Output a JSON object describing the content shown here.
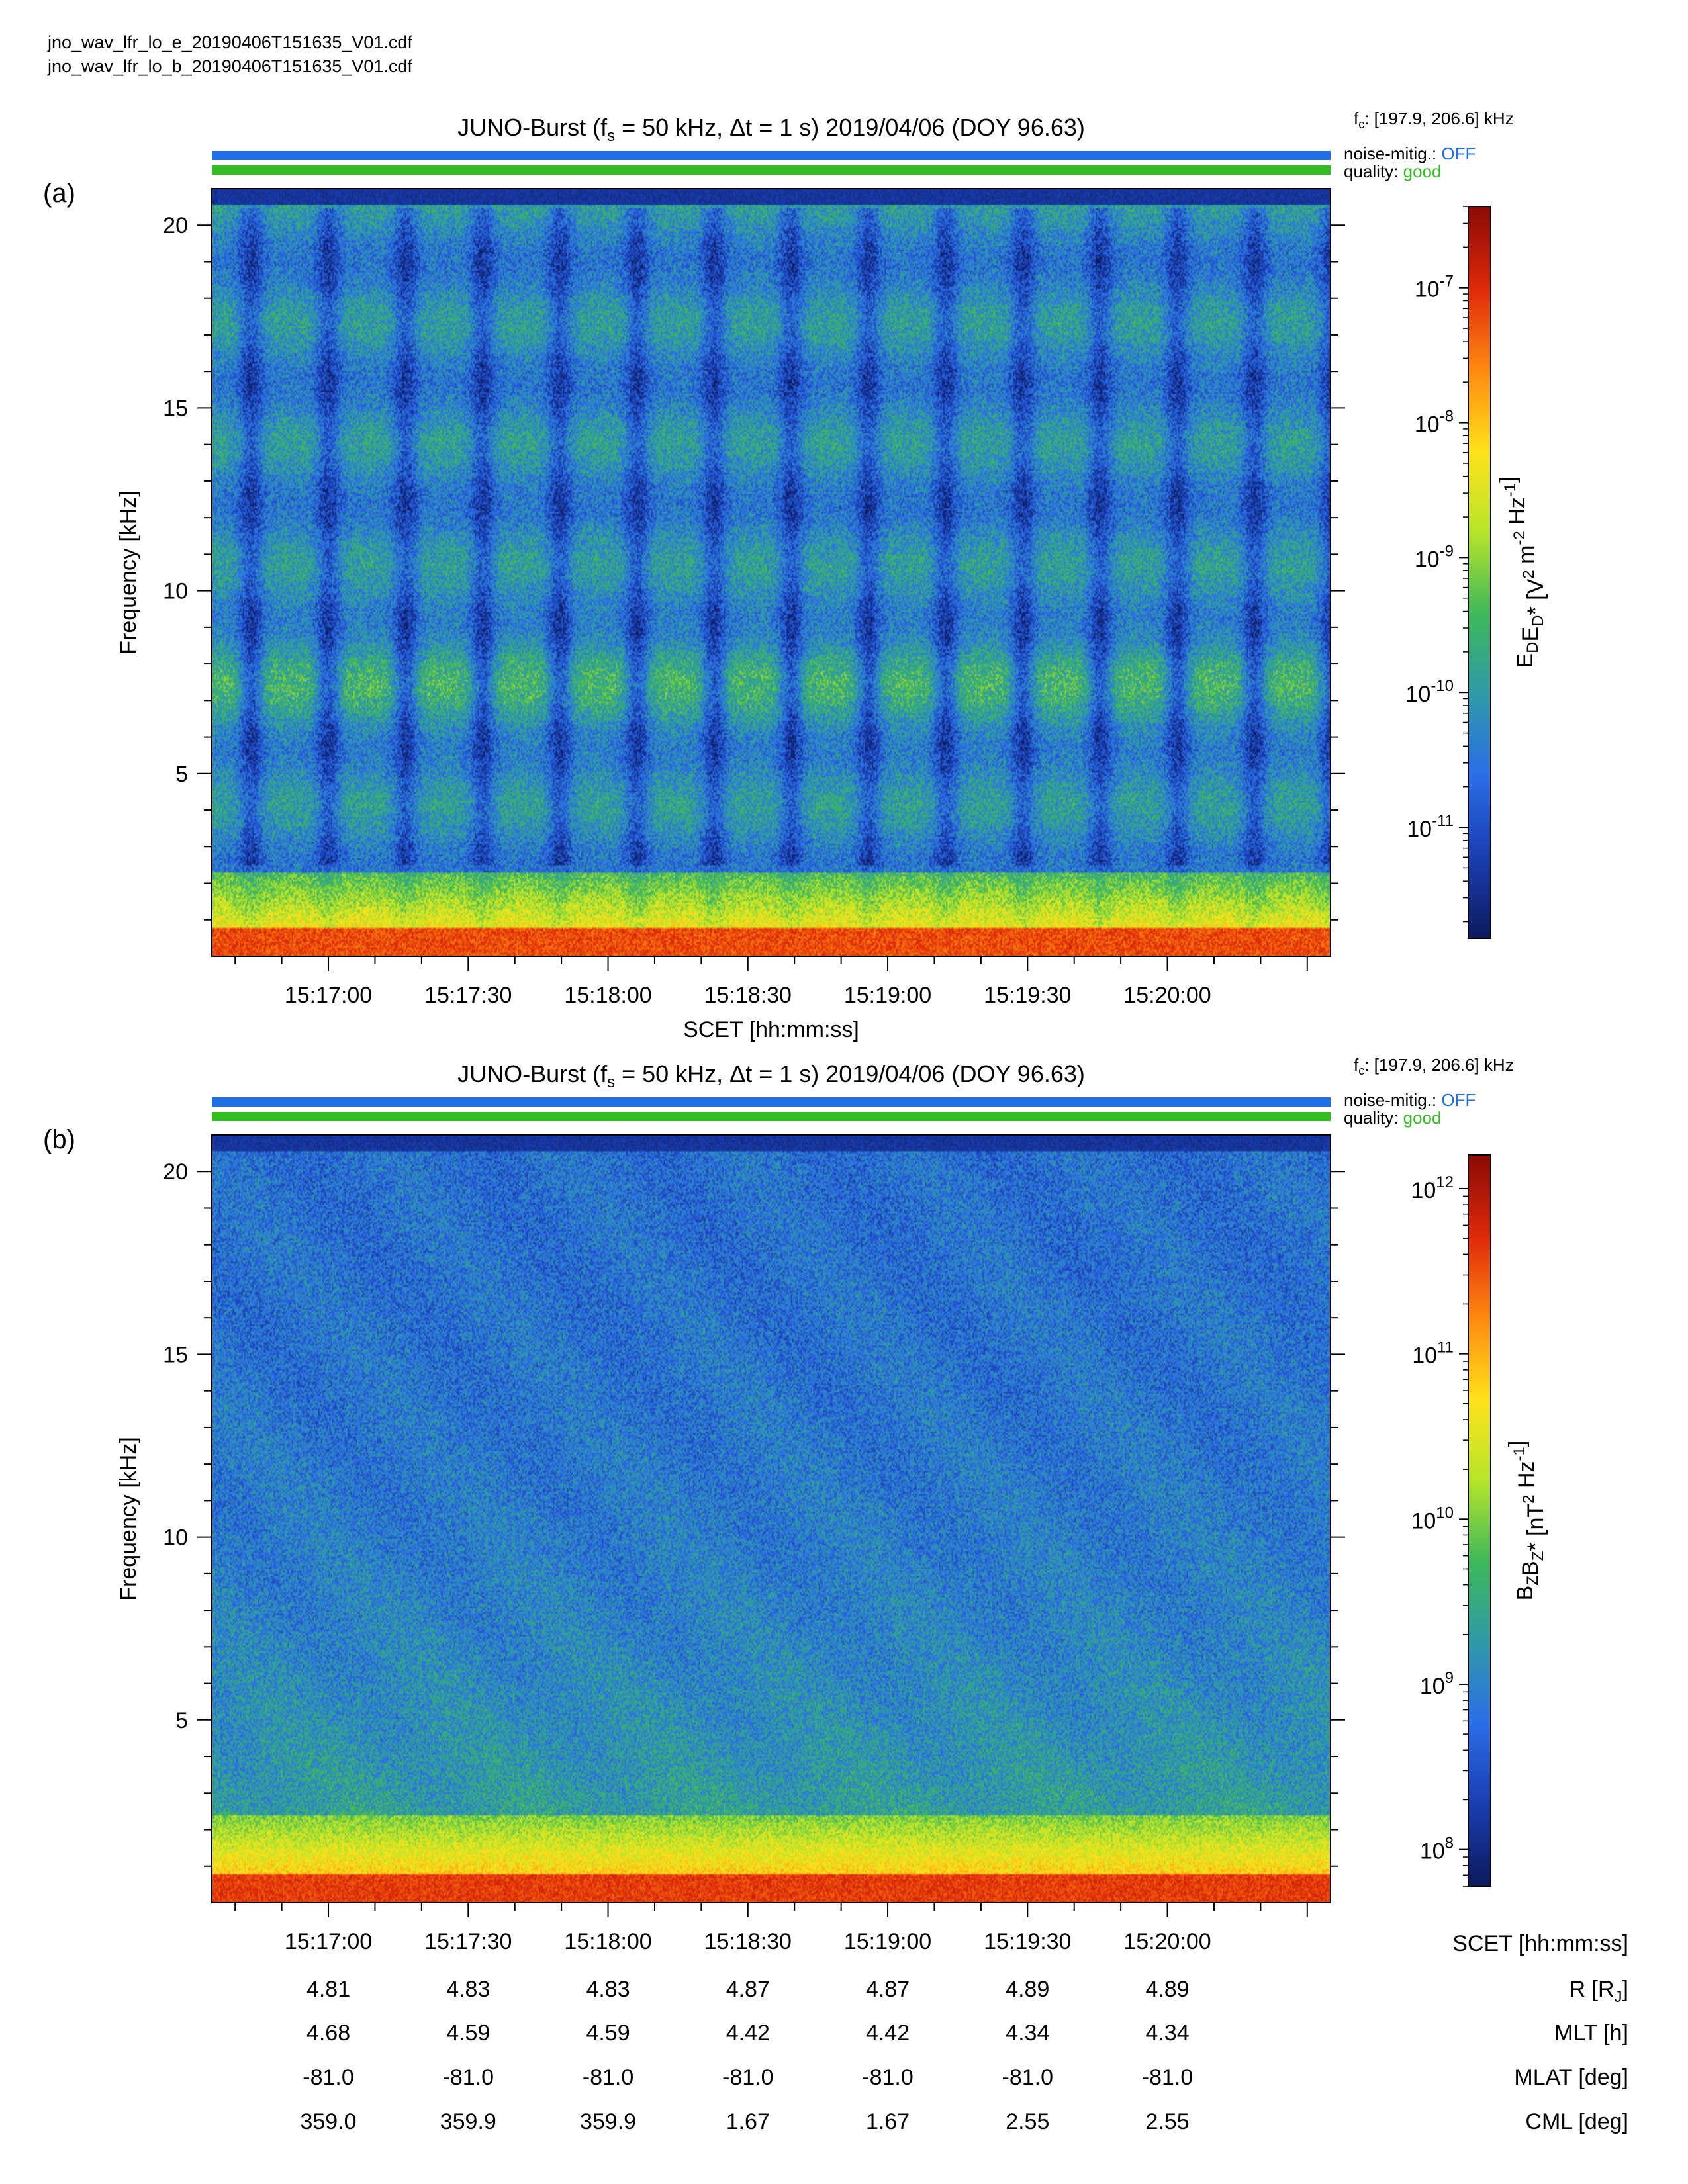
{
  "files": [
    "jno_wav_lfr_lo_e_20190406T151635_V01.cdf",
    "jno_wav_lfr_lo_b_20190406T151635_V01.cdf"
  ],
  "colors": {
    "noise_bar": "#1f6fe6",
    "quality_bar": "#33bb22",
    "noise_status": "#1f6fe6",
    "quality_status": "#33bb22"
  },
  "colormap": [
    "#0d1b5e",
    "#1a3fb2",
    "#2b6ee8",
    "#2f9aa8",
    "#3fb85a",
    "#b7e52a",
    "#ffe21a",
    "#ff8a10",
    "#e02a0a",
    "#8c0c06"
  ],
  "chart_data": [
    {
      "type": "heatmap",
      "panel_label": "(a)",
      "title": {
        "prefix": "JUNO-Burst (f",
        "sub": "s",
        "rest": " = 50 kHz, Δt = 1 s)  2019/04/06 (DOY 96.63)"
      },
      "fc": {
        "main": "f",
        "sub": "c",
        "rest": ": [197.9, 206.6] kHz"
      },
      "noise_label": "noise-mitig.:",
      "noise_value": "OFF",
      "quality_label": "quality:",
      "quality_value": "good",
      "ylabel": "Frequency [kHz]",
      "xlabel": "SCET [hh:mm:ss]",
      "x_tick_labels": [
        "15:17:00",
        "15:17:30",
        "15:18:00",
        "15:18:30",
        "15:19:00",
        "15:19:30",
        "15:20:00"
      ],
      "y_ticks": [
        5,
        10,
        15,
        20
      ],
      "ylim": [
        0,
        21
      ],
      "colorbar": {
        "scale": "log",
        "range": [
          1.5e-12,
          4e-07
        ],
        "ticks": [
          {
            "mant": "10",
            "exp": "-7",
            "v": 1e-07
          },
          {
            "mant": "10",
            "exp": "-8",
            "v": 1e-08
          },
          {
            "mant": "10",
            "exp": "-9",
            "v": 1e-09
          },
          {
            "mant": "10",
            "exp": "-10",
            "v": 1e-10
          },
          {
            "mant": "10",
            "exp": "-11",
            "v": 1e-11
          }
        ],
        "label": "E_D E_D* [V^2 m^-2 Hz^-1]",
        "label_parts": [
          {
            "t": "E"
          },
          {
            "t": "D",
            "s": "sub"
          },
          {
            "t": "E"
          },
          {
            "t": "D",
            "s": "sub"
          },
          {
            "t": "*"
          },
          {
            "t": " [V"
          },
          {
            "t": "2",
            "s": "sup"
          },
          {
            "t": " m"
          },
          {
            "t": "-2",
            "s": "sup"
          },
          {
            "t": " Hz"
          },
          {
            "t": "-1",
            "s": "sup"
          },
          {
            "t": "]"
          }
        ]
      },
      "pattern": "striped"
    },
    {
      "type": "heatmap",
      "panel_label": "(b)",
      "title": {
        "prefix": "JUNO-Burst (f",
        "sub": "s",
        "rest": " = 50 kHz, Δt = 1 s)  2019/04/06 (DOY 96.63)"
      },
      "fc": {
        "main": "f",
        "sub": "c",
        "rest": ": [197.9, 206.6] kHz"
      },
      "noise_label": "noise-mitig.:",
      "noise_value": "OFF",
      "quality_label": "quality:",
      "quality_value": "good",
      "ylabel": "Frequency [kHz]",
      "xlabel": "",
      "x_tick_labels": [
        "15:17:00",
        "15:17:30",
        "15:18:00",
        "15:18:30",
        "15:19:00",
        "15:19:30",
        "15:20:00"
      ],
      "y_ticks": [
        5,
        10,
        15,
        20
      ],
      "ylim": [
        0,
        21
      ],
      "colorbar": {
        "scale": "log",
        "range": [
          60000000.0,
          1600000000000.0
        ],
        "ticks": [
          {
            "mant": "10",
            "exp": "12",
            "v": 1000000000000.0
          },
          {
            "mant": "10",
            "exp": "11",
            "v": 100000000000.0
          },
          {
            "mant": "10",
            "exp": "10",
            "v": 10000000000.0
          },
          {
            "mant": "10",
            "exp": "9",
            "v": 1000000000.0
          },
          {
            "mant": "10",
            "exp": "8",
            "v": 100000000.0
          }
        ],
        "label": "B_Z B_Z* [nT^2 Hz^-1]",
        "label_parts": [
          {
            "t": "B"
          },
          {
            "t": "Z",
            "s": "sub"
          },
          {
            "t": "B"
          },
          {
            "t": "Z",
            "s": "sub"
          },
          {
            "t": "*"
          },
          {
            "t": " [nT"
          },
          {
            "t": "2",
            "s": "sup"
          },
          {
            "t": " Hz"
          },
          {
            "t": "-1",
            "s": "sup"
          },
          {
            "t": "]"
          }
        ]
      },
      "pattern": "smooth"
    }
  ],
  "ephemeris": {
    "rows": [
      {
        "label": "SCET [hh:mm:ss]",
        "values": [
          "15:17:00",
          "15:17:30",
          "15:18:00",
          "15:18:30",
          "15:19:00",
          "15:19:30",
          "15:20:00"
        ]
      },
      {
        "label": "R [R_J]",
        "label_main": "R [R",
        "label_sub": "J",
        "label_end": "]",
        "values": [
          "4.81",
          "4.83",
          "4.83",
          "4.87",
          "4.87",
          "4.89",
          "4.89"
        ]
      },
      {
        "label": "MLT [h]",
        "values": [
          "4.68",
          "4.59",
          "4.59",
          "4.42",
          "4.42",
          "4.34",
          "4.34"
        ]
      },
      {
        "label": "MLAT [deg]",
        "values": [
          "-81.0",
          "-81.0",
          "-81.0",
          "-81.0",
          "-81.0",
          "-81.0",
          "-81.0"
        ]
      },
      {
        "label": "CML [deg]",
        "values": [
          "359.0",
          "359.9",
          "359.9",
          "1.67",
          "1.67",
          "2.55",
          "2.55"
        ]
      }
    ]
  }
}
